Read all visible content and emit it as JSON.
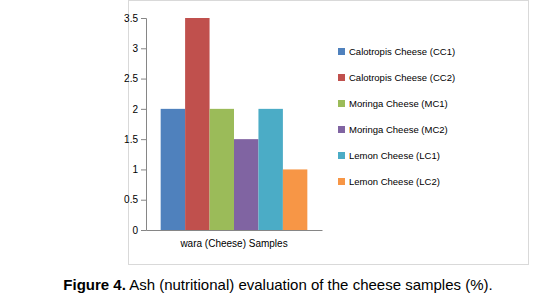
{
  "chart_data": {
    "type": "bar",
    "figure_label": "Figure 4.",
    "caption": "Ash (nutritional) evaluation of the cheese samples (%).",
    "categories": [
      "wara (Cheese) Samples"
    ],
    "series": [
      {
        "name": "Calotropis Cheese (CC1)",
        "color": "#4f81bd",
        "values": [
          2
        ]
      },
      {
        "name": "Calotropis Cheese (CC2)",
        "color": "#c0504d",
        "values": [
          3.5
        ]
      },
      {
        "name": "Moringa Cheese (MC1)",
        "color": "#9bbb59",
        "values": [
          2
        ]
      },
      {
        "name": "Moringa Cheese (MC2)",
        "color": "#8064a2",
        "values": [
          1.5
        ]
      },
      {
        "name": "Lemon Cheese (LC1)",
        "color": "#4bacc6",
        "values": [
          2
        ]
      },
      {
        "name": "Lemon Cheese (LC2)",
        "color": "#f79646",
        "values": [
          1
        ]
      }
    ],
    "ylim": [
      0,
      3.5
    ],
    "yticks": [
      0,
      0.5,
      1,
      1.5,
      2,
      2.5,
      3,
      3.5
    ],
    "grid": false,
    "legend": "right"
  }
}
